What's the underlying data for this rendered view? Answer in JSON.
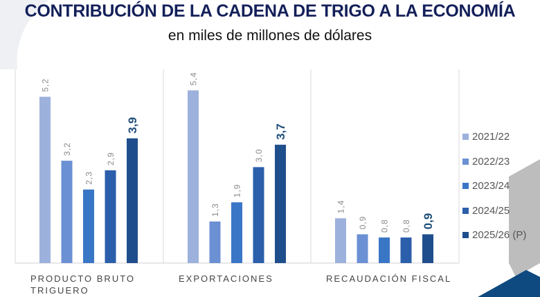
{
  "title": "CONTRIBUCIÓN DE LA CADENA DE TRIGO A LA ECONOMÍA",
  "subtitle": "en miles de millones de dólares",
  "chart_data": {
    "type": "bar",
    "categories": [
      "PRODUCTO BRUTO TRIGUERO",
      "EXPORTACIONES",
      "RECAUDACIÓN FISCAL"
    ],
    "category_lines": [
      [
        "PRODUCTO BRUTO",
        "TRIGUERO"
      ],
      [
        "EXPORTACIONES"
      ],
      [
        "RECAUDACIÓN FISCAL"
      ]
    ],
    "series": [
      {
        "name": "2021/22",
        "values": [
          5.2,
          5.4,
          1.4
        ],
        "labels": [
          "5,2",
          "5,4",
          "1,4"
        ],
        "color": "#9db1dd"
      },
      {
        "name": "2022/23",
        "values": [
          3.2,
          1.3,
          0.9
        ],
        "labels": [
          "3,2",
          "1,3",
          "0,9"
        ],
        "color": "#6b90d3"
      },
      {
        "name": "2023/24",
        "values": [
          2.3,
          1.9,
          0.8
        ],
        "labels": [
          "2,3",
          "1,9",
          "0,8"
        ],
        "color": "#3a76c6"
      },
      {
        "name": "2024/25",
        "values": [
          2.9,
          3.0,
          0.8
        ],
        "labels": [
          "2,9",
          "3,0",
          "0,8"
        ],
        "color": "#2b5fab"
      },
      {
        "name": "2025/26 (P)",
        "values": [
          3.9,
          3.7,
          0.9
        ],
        "labels": [
          "3,9",
          "3,7",
          "0,9"
        ],
        "color": "#1f4e8c"
      }
    ],
    "highlight_label_color": "#1f4e79",
    "label_color": "#8a8a8a",
    "legend_position": "right",
    "grid": false,
    "ylim": [
      0,
      5.8
    ]
  }
}
